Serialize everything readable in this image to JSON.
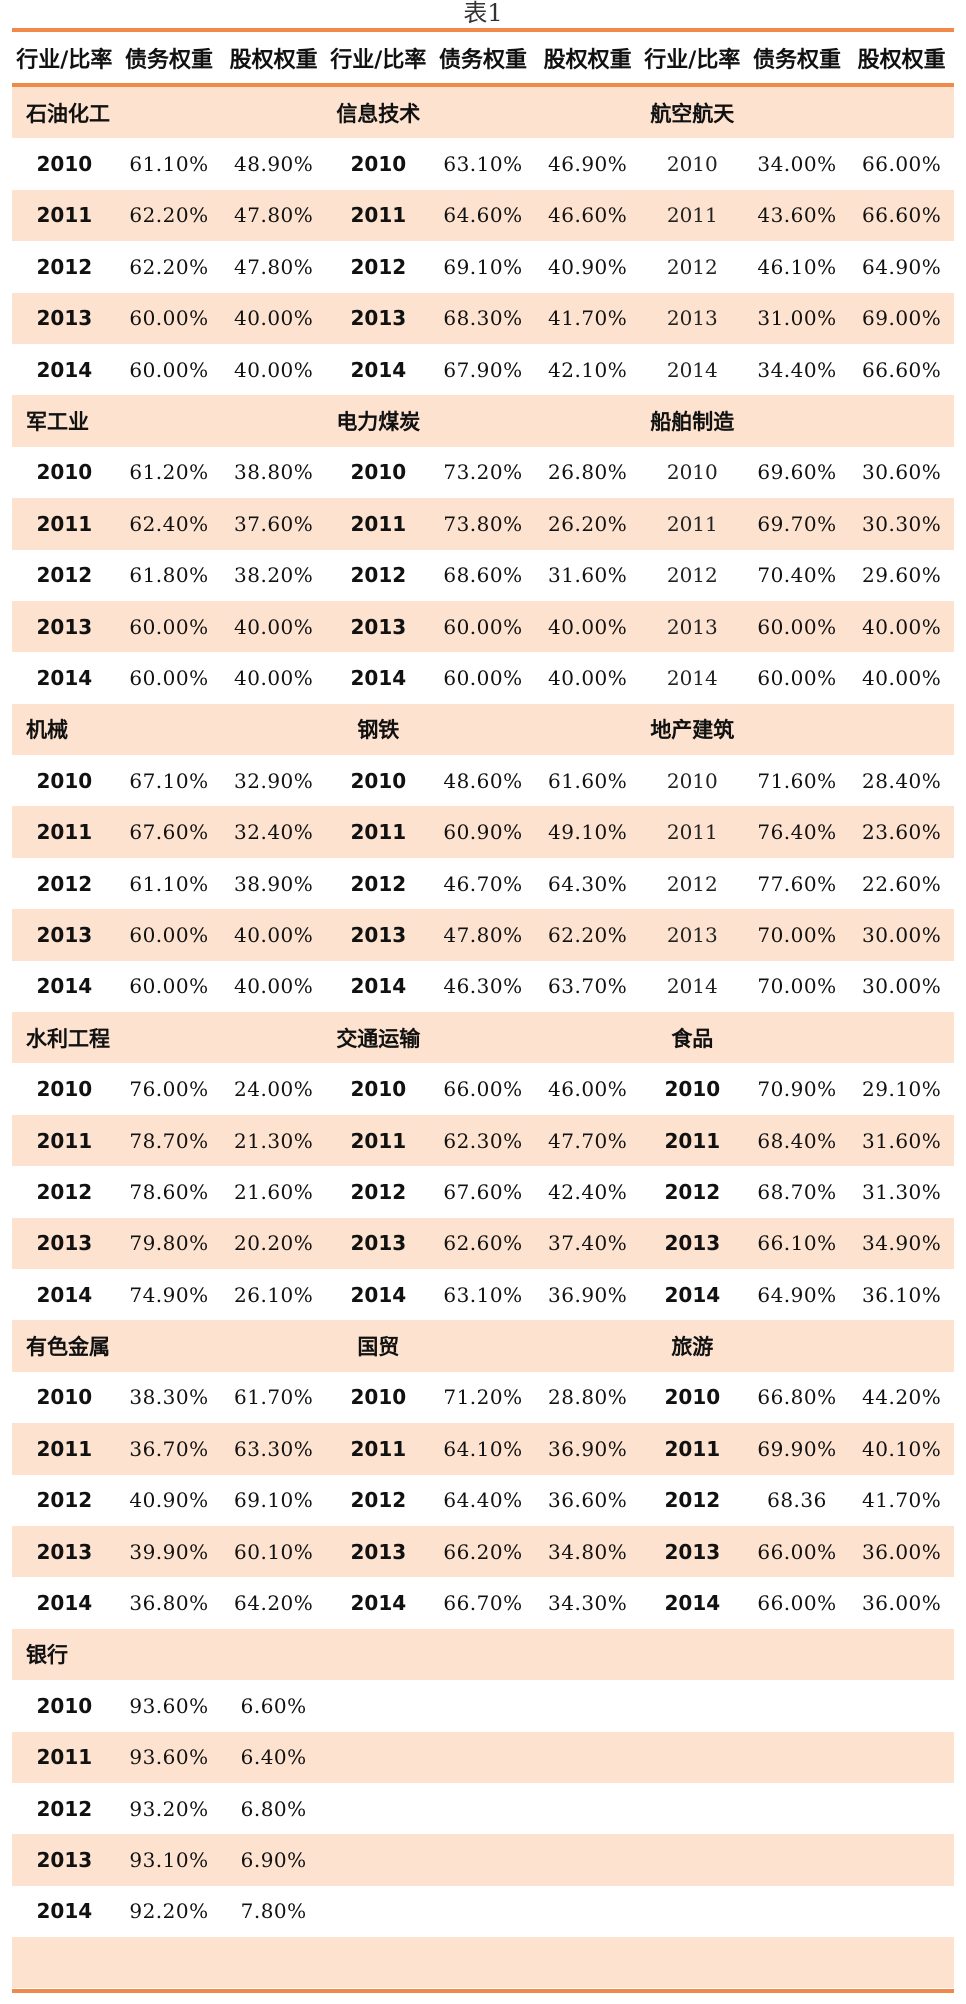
{
  "caption": "表1",
  "columns": [
    "行业/比率",
    "债务权重",
    "股权权重",
    "行业/比率",
    "债务权重",
    "股权权重",
    "行业/比率",
    "债务权重",
    "股权权重"
  ],
  "rows": [
    {
      "shaded": true,
      "type": "sector",
      "cells": [
        "石油化工",
        "",
        "",
        "信息技术",
        "",
        "",
        "航空航天",
        "",
        ""
      ]
    },
    {
      "shaded": false,
      "type": "data",
      "light": [
        false,
        false,
        true
      ],
      "cells": [
        "2010",
        "61.10%",
        "48.90%",
        "2010",
        "63.10%",
        "46.90%",
        "2010",
        "34.00%",
        "66.00%"
      ]
    },
    {
      "shaded": true,
      "type": "data",
      "light": [
        false,
        false,
        true
      ],
      "cells": [
        "2011",
        "62.20%",
        "47.80%",
        "2011",
        "64.60%",
        "46.60%",
        "2011",
        "43.60%",
        "66.60%"
      ]
    },
    {
      "shaded": false,
      "type": "data",
      "light": [
        false,
        false,
        true
      ],
      "cells": [
        "2012",
        "62.20%",
        "47.80%",
        "2012",
        "69.10%",
        "40.90%",
        "2012",
        "46.10%",
        "64.90%"
      ]
    },
    {
      "shaded": true,
      "type": "data",
      "light": [
        false,
        false,
        true
      ],
      "cells": [
        "2013",
        "60.00%",
        "40.00%",
        "2013",
        "68.30%",
        "41.70%",
        "2013",
        "31.00%",
        "69.00%"
      ]
    },
    {
      "shaded": false,
      "type": "data",
      "light": [
        false,
        false,
        true
      ],
      "cells": [
        "2014",
        "60.00%",
        "40.00%",
        "2014",
        "67.90%",
        "42.10%",
        "2014",
        "34.40%",
        "66.60%"
      ]
    },
    {
      "shaded": true,
      "type": "sector",
      "cells": [
        "军工业",
        "",
        "",
        "电力煤炭",
        "",
        "",
        "船舶制造",
        "",
        ""
      ]
    },
    {
      "shaded": false,
      "type": "data",
      "light": [
        false,
        false,
        true
      ],
      "cells": [
        "2010",
        "61.20%",
        "38.80%",
        "2010",
        "73.20%",
        "26.80%",
        "2010",
        "69.60%",
        "30.60%"
      ]
    },
    {
      "shaded": true,
      "type": "data",
      "light": [
        false,
        false,
        true
      ],
      "cells": [
        "2011",
        "62.40%",
        "37.60%",
        "2011",
        "73.80%",
        "26.20%",
        "2011",
        "69.70%",
        "30.30%"
      ]
    },
    {
      "shaded": false,
      "type": "data",
      "light": [
        false,
        false,
        true
      ],
      "cells": [
        "2012",
        "61.80%",
        "38.20%",
        "2012",
        "68.60%",
        "31.60%",
        "2012",
        "70.40%",
        "29.60%"
      ]
    },
    {
      "shaded": true,
      "type": "data",
      "light": [
        false,
        false,
        true
      ],
      "cells": [
        "2013",
        "60.00%",
        "40.00%",
        "2013",
        "60.00%",
        "40.00%",
        "2013",
        "60.00%",
        "40.00%"
      ]
    },
    {
      "shaded": false,
      "type": "data",
      "light": [
        false,
        false,
        true
      ],
      "cells": [
        "2014",
        "60.00%",
        "40.00%",
        "2014",
        "60.00%",
        "40.00%",
        "2014",
        "60.00%",
        "40.00%"
      ]
    },
    {
      "shaded": true,
      "type": "sector",
      "cells": [
        "机械",
        "",
        "",
        "钢铁",
        "",
        "",
        "地产建筑",
        "",
        ""
      ]
    },
    {
      "shaded": false,
      "type": "data",
      "light": [
        false,
        false,
        true
      ],
      "cells": [
        "2010",
        "67.10%",
        "32.90%",
        "2010",
        "48.60%",
        "61.60%",
        "2010",
        "71.60%",
        "28.40%"
      ]
    },
    {
      "shaded": true,
      "type": "data",
      "light": [
        false,
        false,
        true
      ],
      "cells": [
        "2011",
        "67.60%",
        "32.40%",
        "2011",
        "60.90%",
        "49.10%",
        "2011",
        "76.40%",
        "23.60%"
      ]
    },
    {
      "shaded": false,
      "type": "data",
      "light": [
        false,
        false,
        true
      ],
      "cells": [
        "2012",
        "61.10%",
        "38.90%",
        "2012",
        "46.70%",
        "64.30%",
        "2012",
        "77.60%",
        "22.60%"
      ]
    },
    {
      "shaded": true,
      "type": "data",
      "light": [
        false,
        false,
        true
      ],
      "cells": [
        "2013",
        "60.00%",
        "40.00%",
        "2013",
        "47.80%",
        "62.20%",
        "2013",
        "70.00%",
        "30.00%"
      ]
    },
    {
      "shaded": false,
      "type": "data",
      "light": [
        false,
        false,
        true
      ],
      "cells": [
        "2014",
        "60.00%",
        "40.00%",
        "2014",
        "46.30%",
        "63.70%",
        "2014",
        "70.00%",
        "30.00%"
      ]
    },
    {
      "shaded": true,
      "type": "sector",
      "cells": [
        "水利工程",
        "",
        "",
        "交通运输",
        "",
        "",
        "食品",
        "",
        ""
      ]
    },
    {
      "shaded": false,
      "type": "data",
      "light": [
        false,
        false,
        false
      ],
      "cells": [
        "2010",
        "76.00%",
        "24.00%",
        "2010",
        "66.00%",
        "46.00%",
        "2010",
        "70.90%",
        "29.10%"
      ]
    },
    {
      "shaded": true,
      "type": "data",
      "light": [
        false,
        false,
        false
      ],
      "cells": [
        "2011",
        "78.70%",
        "21.30%",
        "2011",
        "62.30%",
        "47.70%",
        "2011",
        "68.40%",
        "31.60%"
      ]
    },
    {
      "shaded": false,
      "type": "data",
      "light": [
        false,
        false,
        false
      ],
      "cells": [
        "2012",
        "78.60%",
        "21.60%",
        "2012",
        "67.60%",
        "42.40%",
        "2012",
        "68.70%",
        "31.30%"
      ]
    },
    {
      "shaded": true,
      "type": "data",
      "light": [
        false,
        false,
        false
      ],
      "cells": [
        "2013",
        "79.80%",
        "20.20%",
        "2013",
        "62.60%",
        "37.40%",
        "2013",
        "66.10%",
        "34.90%"
      ]
    },
    {
      "shaded": false,
      "type": "data",
      "light": [
        false,
        false,
        false
      ],
      "cells": [
        "2014",
        "74.90%",
        "26.10%",
        "2014",
        "63.10%",
        "36.90%",
        "2014",
        "64.90%",
        "36.10%"
      ]
    },
    {
      "shaded": true,
      "type": "sector",
      "cells": [
        "有色金属",
        "",
        "",
        "国贸",
        "",
        "",
        "旅游",
        "",
        ""
      ]
    },
    {
      "shaded": false,
      "type": "data",
      "light": [
        false,
        false,
        false
      ],
      "cells": [
        "2010",
        "38.30%",
        "61.70%",
        "2010",
        "71.20%",
        "28.80%",
        "2010",
        "66.80%",
        "44.20%"
      ]
    },
    {
      "shaded": true,
      "type": "data",
      "light": [
        false,
        false,
        false
      ],
      "cells": [
        "2011",
        "36.70%",
        "63.30%",
        "2011",
        "64.10%",
        "36.90%",
        "2011",
        "69.90%",
        "40.10%"
      ]
    },
    {
      "shaded": false,
      "type": "data",
      "light": [
        false,
        false,
        false
      ],
      "cells": [
        "2012",
        "40.90%",
        "69.10%",
        "2012",
        "64.40%",
        "36.60%",
        "2012",
        "68.36",
        "41.70%"
      ]
    },
    {
      "shaded": true,
      "type": "data",
      "light": [
        false,
        false,
        false
      ],
      "cells": [
        "2013",
        "39.90%",
        "60.10%",
        "2013",
        "66.20%",
        "34.80%",
        "2013",
        "66.00%",
        "36.00%"
      ]
    },
    {
      "shaded": false,
      "type": "data",
      "light": [
        false,
        false,
        false
      ],
      "cells": [
        "2014",
        "36.80%",
        "64.20%",
        "2014",
        "66.70%",
        "34.30%",
        "2014",
        "66.00%",
        "36.00%"
      ]
    },
    {
      "shaded": true,
      "type": "sector",
      "cells": [
        "银行",
        "",
        "",
        "",
        "",
        "",
        "",
        "",
        ""
      ]
    },
    {
      "shaded": false,
      "type": "data",
      "light": [
        false,
        false,
        false
      ],
      "cells": [
        "2010",
        "93.60%",
        "6.60%",
        "",
        "",
        "",
        "",
        "",
        ""
      ]
    },
    {
      "shaded": true,
      "type": "data",
      "light": [
        false,
        false,
        false
      ],
      "cells": [
        "2011",
        "93.60%",
        "6.40%",
        "",
        "",
        "",
        "",
        "",
        ""
      ]
    },
    {
      "shaded": false,
      "type": "data",
      "light": [
        false,
        false,
        false
      ],
      "cells": [
        "2012",
        "93.20%",
        "6.80%",
        "",
        "",
        "",
        "",
        "",
        ""
      ]
    },
    {
      "shaded": true,
      "type": "data",
      "light": [
        false,
        false,
        false
      ],
      "cells": [
        "2013",
        "93.10%",
        "6.90%",
        "",
        "",
        "",
        "",
        "",
        ""
      ]
    },
    {
      "shaded": false,
      "type": "data",
      "light": [
        false,
        false,
        false
      ],
      "cells": [
        "2014",
        "92.20%",
        "7.80%",
        "",
        "",
        "",
        "",
        "",
        ""
      ]
    },
    {
      "shaded": true,
      "type": "blank",
      "cells": [
        "",
        "",
        "",
        "",
        "",
        "",
        "",
        "",
        ""
      ]
    }
  ]
}
